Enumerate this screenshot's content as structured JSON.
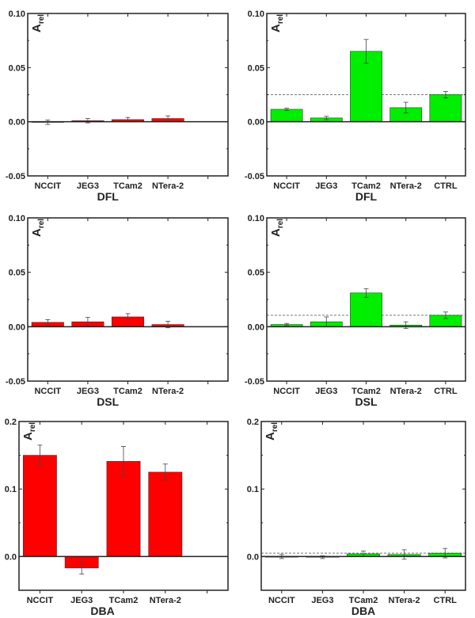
{
  "colors": {
    "red": "#ff0000",
    "green": "#00ee00",
    "axis": "#222222",
    "reference_line": "#777777"
  },
  "chart_data": [
    {
      "type": "bar",
      "title": "",
      "xlabel": "DFL",
      "ylabel": "A_rel",
      "ylabel_main": "A",
      "ylabel_sub": "rel",
      "ylim": [
        -0.05,
        0.1
      ],
      "yticks": [
        "-0.05",
        "0.00",
        "0.05",
        "0.10"
      ],
      "ytick_values": [
        -0.05,
        0,
        0.05,
        0.1
      ],
      "color": "red",
      "categories": [
        "NCCIT",
        "JEG3",
        "TCam2",
        "NTera-2"
      ],
      "values": [
        -0.0005,
        0.001,
        0.002,
        0.003
      ],
      "errors": [
        0.002,
        0.002,
        0.002,
        0.0025
      ],
      "reference": null
    },
    {
      "type": "bar",
      "title": "",
      "xlabel": "DFL",
      "ylabel": "A_rel",
      "ylabel_main": "A",
      "ylabel_sub": "rel",
      "ylim": [
        -0.05,
        0.1
      ],
      "yticks": [
        "-0.05",
        "0.00",
        "0.05",
        "0.10"
      ],
      "ytick_values": [
        -0.05,
        0,
        0.05,
        0.1
      ],
      "color": "green",
      "categories": [
        "NCCIT",
        "JEG3",
        "TCam2",
        "NTera-2",
        "CTRL"
      ],
      "values": [
        0.0115,
        0.0035,
        0.065,
        0.013,
        0.025
      ],
      "errors": [
        0.001,
        0.0015,
        0.011,
        0.005,
        0.003
      ],
      "reference": 0.025
    },
    {
      "type": "bar",
      "title": "",
      "xlabel": "DSL",
      "ylabel": "A_rel",
      "ylabel_main": "A",
      "ylabel_sub": "rel",
      "ylim": [
        -0.05,
        0.1
      ],
      "yticks": [
        "-0.05",
        "0.00",
        "0.05",
        "0.10"
      ],
      "ytick_values": [
        -0.05,
        0,
        0.05,
        0.1
      ],
      "color": "red",
      "categories": [
        "NCCIT",
        "JEG3",
        "TCam2",
        "NTera-2"
      ],
      "values": [
        0.004,
        0.0045,
        0.009,
        0.002
      ],
      "errors": [
        0.0025,
        0.004,
        0.003,
        0.003
      ],
      "reference": null
    },
    {
      "type": "bar",
      "title": "",
      "xlabel": "DSL",
      "ylabel": "A_rel",
      "ylabel_main": "A",
      "ylabel_sub": "rel",
      "ylim": [
        -0.05,
        0.1
      ],
      "yticks": [
        "-0.05",
        "0.00",
        "0.05",
        "0.10"
      ],
      "ytick_values": [
        -0.05,
        0,
        0.05,
        0.1
      ],
      "color": "green",
      "categories": [
        "NCCIT",
        "JEG3",
        "TCam2",
        "NTera-2",
        "CTRL"
      ],
      "values": [
        0.002,
        0.0045,
        0.031,
        0.0015,
        0.0105
      ],
      "errors": [
        0.001,
        0.0045,
        0.004,
        0.003,
        0.003
      ],
      "reference": 0.0105
    },
    {
      "type": "bar",
      "title": "",
      "xlabel": "DBA",
      "ylabel": "A_rel",
      "ylabel_main": "A",
      "ylabel_sub": "rel",
      "ylim": [
        -0.05,
        0.2
      ],
      "yticks": [
        "0.0",
        "0.1",
        "0.2"
      ],
      "ytick_values": [
        0,
        0.1,
        0.2
      ],
      "color": "red",
      "categories": [
        "NCCIT",
        "JEG3",
        "TCam2",
        "NTera-2"
      ],
      "values": [
        0.15,
        -0.017,
        0.141,
        0.125
      ],
      "errors": [
        0.015,
        0.009,
        0.022,
        0.012
      ],
      "reference": null
    },
    {
      "type": "bar",
      "title": "",
      "xlabel": "DBA",
      "ylabel": "A_rel",
      "ylabel_main": "A",
      "ylabel_sub": "rel",
      "ylim": [
        -0.05,
        0.2
      ],
      "yticks": [
        "0.0",
        "0.1",
        "0.2"
      ],
      "ytick_values": [
        0,
        0.1,
        0.2
      ],
      "color": "green",
      "categories": [
        "NCCIT",
        "JEG3",
        "TCam2",
        "NTera-2",
        "CTRL"
      ],
      "values": [
        0.0,
        -0.001,
        0.004,
        0.003,
        0.005
      ],
      "errors": [
        0.003,
        0.002,
        0.004,
        0.007,
        0.007
      ],
      "reference": 0.005
    }
  ]
}
